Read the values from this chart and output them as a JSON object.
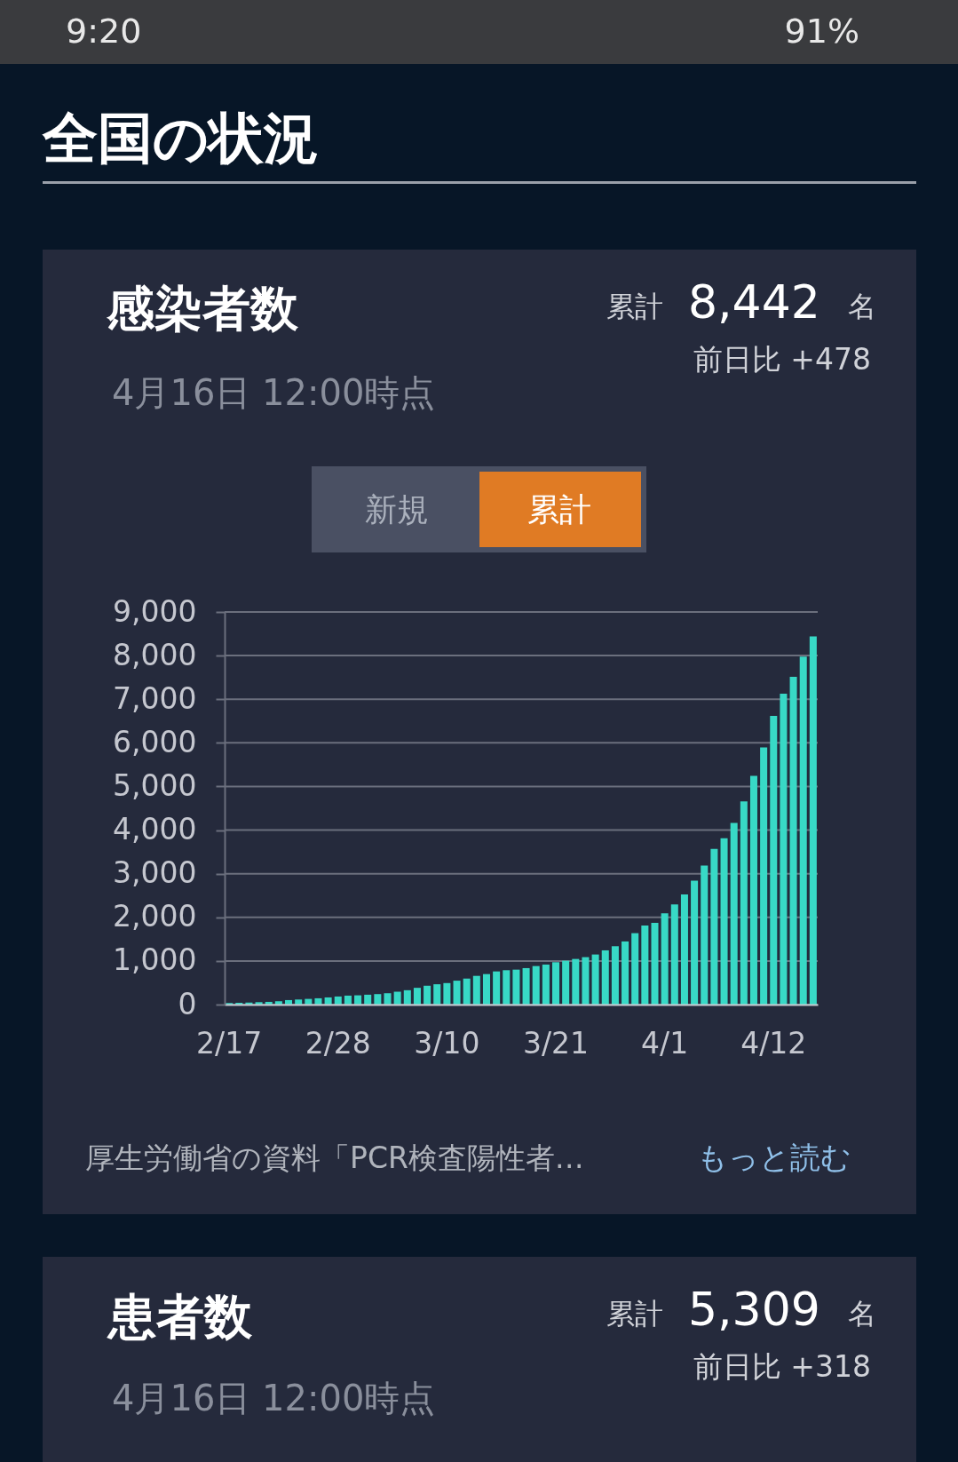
{
  "chart_data": {
    "type": "bar",
    "title": "感染者数",
    "subtitle": "4月16日 12:00時点",
    "categories": [
      "2/17",
      null,
      null,
      null,
      null,
      null,
      null,
      null,
      null,
      null,
      null,
      "2/28",
      null,
      null,
      null,
      null,
      null,
      null,
      null,
      null,
      null,
      null,
      "3/10",
      null,
      null,
      null,
      null,
      null,
      null,
      null,
      null,
      null,
      null,
      "3/21",
      null,
      null,
      null,
      null,
      null,
      null,
      null,
      null,
      null,
      null,
      "4/1",
      null,
      null,
      null,
      null,
      null,
      null,
      null,
      null,
      null,
      null,
      "4/12",
      null,
      null,
      null,
      null
    ],
    "values": [
      34,
      41,
      48,
      55,
      62,
      75,
      103,
      116,
      130,
      144,
      164,
      185,
      205,
      212,
      226,
      240,
      260,
      295,
      329,
      384,
      432,
      466,
      493,
      548,
      596,
      658,
      699,
      760,
      788,
      801,
      836,
      883,
      917,
      971,
      1005,
      1046,
      1087,
      1148,
      1243,
      1338,
      1447,
      1637,
      1814,
      1875,
      2092,
      2296,
      2527,
      2840,
      3186,
      3567,
      3811,
      4164,
      4660,
      5245,
      5897,
      6617,
      7126,
      7514,
      7976,
      8442
    ],
    "color": "#38d9c6",
    "ylim": [
      0,
      9000
    ],
    "yticks": [
      {
        "value": 0,
        "label": "0"
      },
      {
        "value": 1000,
        "label": "1,000"
      },
      {
        "value": 2000,
        "label": "2,000"
      },
      {
        "value": 3000,
        "label": "3,000"
      },
      {
        "value": 4000,
        "label": "4,000"
      },
      {
        "value": 5000,
        "label": "5,000"
      },
      {
        "value": 6000,
        "label": "6,000"
      },
      {
        "value": 7000,
        "label": "7,000"
      },
      {
        "value": 8000,
        "label": "8,000"
      },
      {
        "value": 9000,
        "label": "9,000"
      }
    ],
    "grid": "y",
    "annotations": [
      "9:20",
      "91%",
      "全国の状況",
      "累計",
      "8,442",
      "名",
      "前日比 +478",
      "新規",
      "累計",
      "厚生労働省の資料「PCR検査陽性者…",
      "もっと読む",
      "患者数",
      "累計",
      "5,309",
      "名",
      "前日比 +318",
      "4月16日 12:00時点"
    ]
  }
}
